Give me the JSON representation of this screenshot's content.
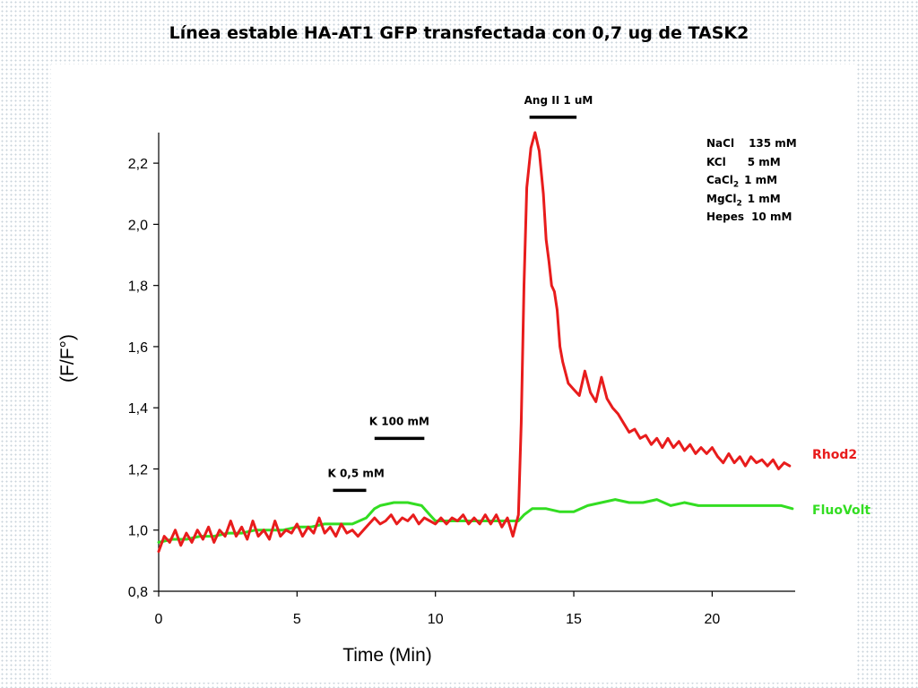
{
  "chart_data": {
    "type": "line",
    "title": "Línea estable HA-AT1 GFP transfectada con 0,7 ug de TASK2",
    "xlabel": "Time (Min)",
    "ylabel": "(F/F°)",
    "xlim": [
      0,
      23
    ],
    "ylim": [
      0.8,
      2.3
    ],
    "xticks": [
      0,
      5,
      10,
      15,
      20
    ],
    "xtick_labels": [
      "0",
      "5",
      "10",
      "15",
      "20"
    ],
    "yticks": [
      0.8,
      1.0,
      1.2,
      1.4,
      1.6,
      1.8,
      2.0,
      2.2
    ],
    "ytick_labels": [
      "0,8",
      "1,0",
      "1,2",
      "1,4",
      "1,6",
      "1,8",
      "2,0",
      "2,2"
    ],
    "grid": false,
    "series": [
      {
        "name": "Rhod2",
        "color": "#e81c1c",
        "points": [
          [
            0,
            0.93
          ],
          [
            0.2,
            0.98
          ],
          [
            0.4,
            0.96
          ],
          [
            0.6,
            1.0
          ],
          [
            0.8,
            0.95
          ],
          [
            1.0,
            0.99
          ],
          [
            1.2,
            0.96
          ],
          [
            1.4,
            1.0
          ],
          [
            1.6,
            0.97
          ],
          [
            1.8,
            1.01
          ],
          [
            2.0,
            0.96
          ],
          [
            2.2,
            1.0
          ],
          [
            2.4,
            0.98
          ],
          [
            2.6,
            1.03
          ],
          [
            2.8,
            0.98
          ],
          [
            3.0,
            1.01
          ],
          [
            3.2,
            0.97
          ],
          [
            3.4,
            1.03
          ],
          [
            3.6,
            0.98
          ],
          [
            3.8,
            1.0
          ],
          [
            4.0,
            0.97
          ],
          [
            4.2,
            1.03
          ],
          [
            4.4,
            0.98
          ],
          [
            4.6,
            1.0
          ],
          [
            4.8,
            0.99
          ],
          [
            5.0,
            1.02
          ],
          [
            5.2,
            0.98
          ],
          [
            5.4,
            1.01
          ],
          [
            5.6,
            0.99
          ],
          [
            5.8,
            1.04
          ],
          [
            6.0,
            0.99
          ],
          [
            6.2,
            1.01
          ],
          [
            6.4,
            0.98
          ],
          [
            6.6,
            1.02
          ],
          [
            6.8,
            0.99
          ],
          [
            7.0,
            1.0
          ],
          [
            7.2,
            0.98
          ],
          [
            7.4,
            1.0
          ],
          [
            7.6,
            1.02
          ],
          [
            7.8,
            1.04
          ],
          [
            8.0,
            1.02
          ],
          [
            8.2,
            1.03
          ],
          [
            8.4,
            1.05
          ],
          [
            8.6,
            1.02
          ],
          [
            8.8,
            1.04
          ],
          [
            9.0,
            1.03
          ],
          [
            9.2,
            1.05
          ],
          [
            9.4,
            1.02
          ],
          [
            9.6,
            1.04
          ],
          [
            9.8,
            1.03
          ],
          [
            10.0,
            1.02
          ],
          [
            10.2,
            1.04
          ],
          [
            10.4,
            1.02
          ],
          [
            10.6,
            1.04
          ],
          [
            10.8,
            1.03
          ],
          [
            11.0,
            1.05
          ],
          [
            11.2,
            1.02
          ],
          [
            11.4,
            1.04
          ],
          [
            11.6,
            1.02
          ],
          [
            11.8,
            1.05
          ],
          [
            12.0,
            1.02
          ],
          [
            12.2,
            1.05
          ],
          [
            12.4,
            1.01
          ],
          [
            12.6,
            1.04
          ],
          [
            12.8,
            0.98
          ],
          [
            13.0,
            1.05
          ],
          [
            13.1,
            1.35
          ],
          [
            13.2,
            1.8
          ],
          [
            13.3,
            2.12
          ],
          [
            13.45,
            2.25
          ],
          [
            13.6,
            2.3
          ],
          [
            13.75,
            2.24
          ],
          [
            13.9,
            2.1
          ],
          [
            14.0,
            1.95
          ],
          [
            14.1,
            1.88
          ],
          [
            14.2,
            1.8
          ],
          [
            14.3,
            1.78
          ],
          [
            14.4,
            1.72
          ],
          [
            14.5,
            1.6
          ],
          [
            14.6,
            1.55
          ],
          [
            14.8,
            1.48
          ],
          [
            15.0,
            1.46
          ],
          [
            15.2,
            1.44
          ],
          [
            15.4,
            1.52
          ],
          [
            15.6,
            1.45
          ],
          [
            15.8,
            1.42
          ],
          [
            16.0,
            1.5
          ],
          [
            16.2,
            1.43
          ],
          [
            16.4,
            1.4
          ],
          [
            16.6,
            1.38
          ],
          [
            16.8,
            1.35
          ],
          [
            17.0,
            1.32
          ],
          [
            17.2,
            1.33
          ],
          [
            17.4,
            1.3
          ],
          [
            17.6,
            1.31
          ],
          [
            17.8,
            1.28
          ],
          [
            18.0,
            1.3
          ],
          [
            18.2,
            1.27
          ],
          [
            18.4,
            1.3
          ],
          [
            18.6,
            1.27
          ],
          [
            18.8,
            1.29
          ],
          [
            19.0,
            1.26
          ],
          [
            19.2,
            1.28
          ],
          [
            19.4,
            1.25
          ],
          [
            19.6,
            1.27
          ],
          [
            19.8,
            1.25
          ],
          [
            20.0,
            1.27
          ],
          [
            20.2,
            1.24
          ],
          [
            20.4,
            1.22
          ],
          [
            20.6,
            1.25
          ],
          [
            20.8,
            1.22
          ],
          [
            21.0,
            1.24
          ],
          [
            21.2,
            1.21
          ],
          [
            21.4,
            1.24
          ],
          [
            21.6,
            1.22
          ],
          [
            21.8,
            1.23
          ],
          [
            22.0,
            1.21
          ],
          [
            22.2,
            1.23
          ],
          [
            22.4,
            1.2
          ],
          [
            22.6,
            1.22
          ],
          [
            22.8,
            1.21
          ]
        ]
      },
      {
        "name": "FluoVolt",
        "color": "#33dd22",
        "points": [
          [
            0,
            0.96
          ],
          [
            0.5,
            0.97
          ],
          [
            1.0,
            0.97
          ],
          [
            1.5,
            0.98
          ],
          [
            2.0,
            0.98
          ],
          [
            2.5,
            0.99
          ],
          [
            3.0,
            0.99
          ],
          [
            3.5,
            1.0
          ],
          [
            4.0,
            1.0
          ],
          [
            4.5,
            1.0
          ],
          [
            5.0,
            1.01
          ],
          [
            5.5,
            1.01
          ],
          [
            6.0,
            1.02
          ],
          [
            6.5,
            1.02
          ],
          [
            7.0,
            1.02
          ],
          [
            7.5,
            1.04
          ],
          [
            7.8,
            1.07
          ],
          [
            8.0,
            1.08
          ],
          [
            8.5,
            1.09
          ],
          [
            9.0,
            1.09
          ],
          [
            9.5,
            1.08
          ],
          [
            9.8,
            1.05
          ],
          [
            10.0,
            1.03
          ],
          [
            10.5,
            1.03
          ],
          [
            11.0,
            1.03
          ],
          [
            11.5,
            1.03
          ],
          [
            12.0,
            1.03
          ],
          [
            12.5,
            1.03
          ],
          [
            13.0,
            1.03
          ],
          [
            13.2,
            1.05
          ],
          [
            13.5,
            1.07
          ],
          [
            14.0,
            1.07
          ],
          [
            14.5,
            1.06
          ],
          [
            15.0,
            1.06
          ],
          [
            15.5,
            1.08
          ],
          [
            16.0,
            1.09
          ],
          [
            16.5,
            1.1
          ],
          [
            17.0,
            1.09
          ],
          [
            17.5,
            1.09
          ],
          [
            18.0,
            1.1
          ],
          [
            18.5,
            1.08
          ],
          [
            19.0,
            1.09
          ],
          [
            19.5,
            1.08
          ],
          [
            20.0,
            1.08
          ],
          [
            20.5,
            1.08
          ],
          [
            21.0,
            1.08
          ],
          [
            21.5,
            1.08
          ],
          [
            22.0,
            1.08
          ],
          [
            22.5,
            1.08
          ],
          [
            22.9,
            1.07
          ]
        ]
      }
    ],
    "annotations": [
      {
        "text": "K 0,5 mM",
        "x_start": 6.3,
        "x_end": 7.5,
        "y": 1.13
      },
      {
        "text": "K 100 mM",
        "x_start": 7.8,
        "x_end": 9.6,
        "y": 1.3
      },
      {
        "text": "Ang II 1 uM",
        "x_start": 13.4,
        "x_end": 15.1,
        "y": 2.35
      }
    ]
  },
  "solution_table": [
    {
      "name": "NaCl",
      "conc": "135 mM"
    },
    {
      "name": "KCl",
      "conc": "5 mM"
    },
    {
      "name": "CaCl",
      "sub": "2",
      "conc": "1 mM"
    },
    {
      "name": "MgCl",
      "sub": "2",
      "conc": "1 mM"
    },
    {
      "name": "Hepes",
      "conc": "10 mM"
    }
  ]
}
